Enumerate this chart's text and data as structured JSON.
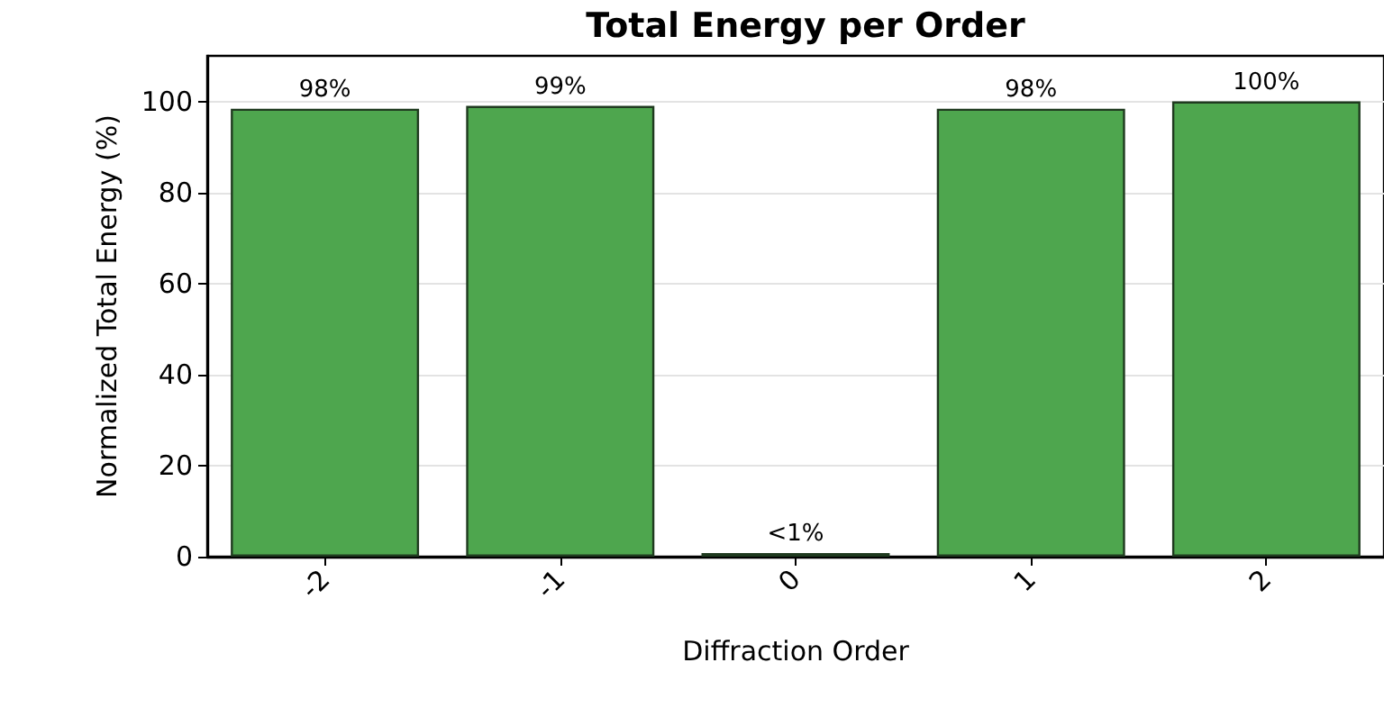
{
  "chart_data": {
    "type": "bar",
    "title": "Total Energy per Order",
    "xlabel": "Diffraction Order",
    "ylabel": "Normalized Total Energy (%)",
    "categories": [
      "-2",
      "-1",
      "0",
      "1",
      "2"
    ],
    "values": [
      98.4,
      99.0,
      0.8,
      98.4,
      100.0
    ],
    "colors": [
      "#4ea64e",
      "#4ea64e",
      "#6b3a3a",
      "#4ea64e",
      "#4ea64e"
    ],
    "value_labels": [
      "98%",
      "99%",
      "<1%",
      "98%",
      "100%"
    ],
    "ylim": [
      0,
      110
    ],
    "yticks": [
      0,
      20,
      40,
      60,
      80,
      100
    ],
    "grid": "y"
  }
}
